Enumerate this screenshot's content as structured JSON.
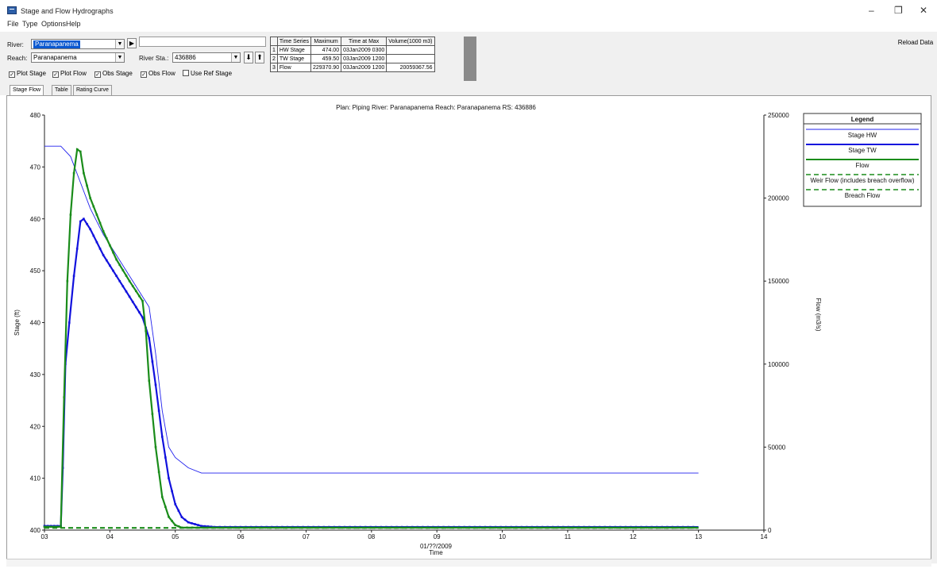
{
  "window": {
    "title": "Stage and Flow Hydrographs",
    "minimize": "–",
    "maximize": "❐",
    "close": "✕"
  },
  "menu": [
    "File",
    "Type",
    "Options",
    "Help"
  ],
  "controls": {
    "river_label": "River:",
    "river_value": "Paranapanema",
    "reach_label": "Reach:",
    "reach_value": "Paranapanema",
    "river_sta_label": "River Sta.:",
    "river_sta_value": "436886",
    "play_icon": "play-icon",
    "down_arrow": "⬇",
    "up_arrow": "⬆",
    "reload_label": "Reload Data"
  },
  "checkboxes": [
    {
      "label": "Plot Stage",
      "checked": true
    },
    {
      "label": "Plot Flow",
      "checked": true
    },
    {
      "label": "Obs Stage",
      "checked": true
    },
    {
      "label": "Obs Flow",
      "checked": true
    },
    {
      "label": "Use Ref Stage",
      "checked": false
    }
  ],
  "summary_table": {
    "headers": [
      "Time Series",
      "Maximum",
      "Time at Max",
      "Volume(1000 m3)"
    ],
    "rows": [
      {
        "n": "1",
        "series": "HW Stage",
        "max": "474.00",
        "time": "03Jan2009 0300",
        "volume": ""
      },
      {
        "n": "2",
        "series": "TW Stage",
        "max": "459.50",
        "time": "03Jan2009 1200",
        "volume": ""
      },
      {
        "n": "3",
        "series": "Flow",
        "max": "229370.90",
        "time": "03Jan2009 1200",
        "volume": "20059367.56"
      }
    ]
  },
  "tabs": [
    "Stage Flow",
    "Table",
    "Rating Curve"
  ],
  "chart_data": {
    "type": "line",
    "title": "Plan: Piping   River: Paranapanema   Reach: Paranapanema   RS: 436886",
    "xlabel": "Time",
    "x_date_label": "01/??/2009",
    "ylabel": "Stage (ft)",
    "y2label": "Flow (m3/s)",
    "x_ticks": [
      "03",
      "04",
      "05",
      "06",
      "07",
      "08",
      "09",
      "10",
      "11",
      "12",
      "13",
      "14"
    ],
    "xlim": [
      3,
      14
    ],
    "y_ticks": [
      400,
      410,
      420,
      430,
      440,
      450,
      460,
      470,
      480
    ],
    "ylim": [
      400,
      480
    ],
    "y2_ticks": [
      0,
      50000,
      100000,
      150000,
      200000,
      250000
    ],
    "y2lim": [
      0,
      250000
    ],
    "legend_title": "Legend",
    "legend_position": "top-right",
    "series": [
      {
        "name": "Stage HW",
        "axis": "left",
        "color": "#2222ee",
        "style": "thin",
        "x": [
          3.0,
          3.25,
          3.4,
          3.55,
          3.7,
          3.9,
          4.1,
          4.3,
          4.5,
          4.6,
          4.7,
          4.8,
          4.9,
          5.0,
          5.2,
          5.4,
          5.6,
          13.0
        ],
        "y": [
          474,
          474,
          472,
          467,
          462,
          457,
          453,
          449,
          445,
          443,
          434,
          423,
          416,
          414,
          412,
          411,
          411,
          411
        ]
      },
      {
        "name": "Stage TW",
        "axis": "left",
        "color": "#1111dd",
        "style": "thick-markers",
        "x": [
          3.0,
          3.25,
          3.28,
          3.32,
          3.38,
          3.45,
          3.55,
          3.6,
          3.7,
          3.9,
          4.1,
          4.3,
          4.5,
          4.6,
          4.7,
          4.8,
          4.9,
          5.0,
          5.1,
          5.2,
          5.4,
          5.6,
          13.0
        ],
        "y": [
          400.8,
          400.8,
          412,
          432,
          440,
          449,
          459.5,
          460,
          458,
          453,
          449,
          445,
          441,
          437,
          428,
          418,
          410,
          405,
          402.5,
          401.5,
          400.8,
          400.6,
          400.6
        ]
      },
      {
        "name": "Flow",
        "axis": "right",
        "color": "#1a8c1a",
        "style": "thick-markers",
        "x": [
          3.0,
          3.25,
          3.3,
          3.35,
          3.4,
          3.45,
          3.5,
          3.55,
          3.6,
          3.7,
          3.9,
          4.1,
          4.3,
          4.5,
          4.55,
          4.6,
          4.7,
          4.8,
          4.9,
          5.0,
          5.1,
          13.0
        ],
        "y": [
          2000,
          2000,
          80000,
          150000,
          190000,
          215000,
          229370,
          228000,
          215000,
          200000,
          180000,
          163000,
          150000,
          138000,
          120000,
          90000,
          50000,
          20000,
          8000,
          3000,
          1500,
          1500
        ]
      },
      {
        "name": "Weir Flow (includes breach overflow)",
        "axis": "right",
        "color": "#1a8c1a",
        "style": "dashed",
        "x": [
          3.0,
          13.0
        ],
        "y": [
          1500,
          1500
        ]
      },
      {
        "name": "Breach Flow",
        "axis": "right",
        "color": "#1a8c1a",
        "style": "dashed",
        "x": [
          3.0,
          13.0
        ],
        "y": [
          1200,
          1200
        ]
      }
    ]
  }
}
